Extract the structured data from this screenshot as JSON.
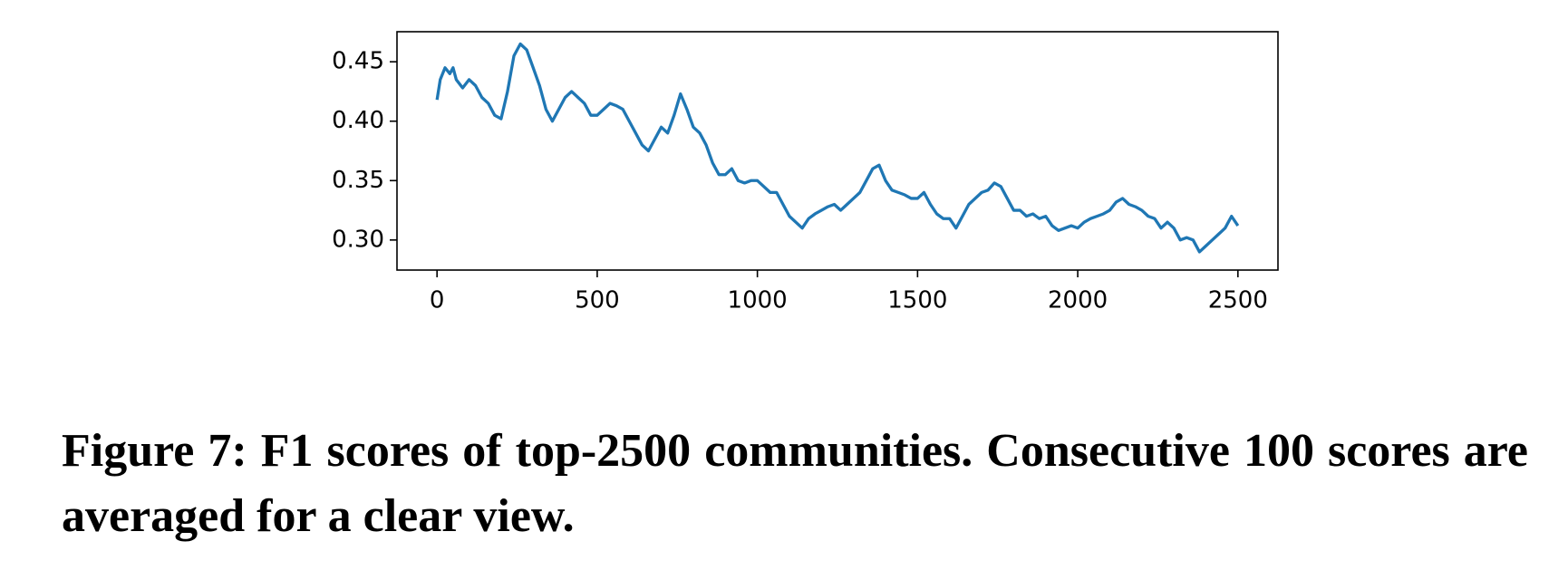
{
  "chart_data": {
    "type": "line",
    "caption": "Figure 7: F1 scores of top-2500 communities. Consecutive 100 scores are averaged for a clear view.",
    "x": [
      0,
      10,
      25,
      40,
      50,
      60,
      80,
      100,
      120,
      140,
      160,
      180,
      200,
      220,
      240,
      260,
      280,
      300,
      320,
      340,
      360,
      380,
      400,
      420,
      440,
      460,
      480,
      500,
      520,
      540,
      560,
      580,
      600,
      620,
      640,
      660,
      680,
      700,
      720,
      740,
      760,
      780,
      800,
      820,
      840,
      860,
      880,
      900,
      920,
      940,
      960,
      980,
      1000,
      1020,
      1040,
      1060,
      1080,
      1100,
      1120,
      1140,
      1160,
      1180,
      1200,
      1220,
      1240,
      1260,
      1280,
      1300,
      1320,
      1340,
      1360,
      1380,
      1400,
      1420,
      1440,
      1460,
      1480,
      1500,
      1520,
      1540,
      1560,
      1580,
      1600,
      1620,
      1640,
      1660,
      1680,
      1700,
      1720,
      1740,
      1760,
      1780,
      1800,
      1820,
      1840,
      1860,
      1880,
      1900,
      1920,
      1940,
      1960,
      1980,
      2000,
      2020,
      2040,
      2060,
      2080,
      2100,
      2120,
      2140,
      2160,
      2180,
      2200,
      2220,
      2240,
      2260,
      2280,
      2300,
      2320,
      2340,
      2360,
      2380,
      2400,
      2420,
      2440,
      2460,
      2480,
      2500
    ],
    "series": [
      {
        "color": "#1f77b4",
        "values": [
          0.418,
          0.435,
          0.445,
          0.44,
          0.445,
          0.435,
          0.428,
          0.435,
          0.43,
          0.42,
          0.415,
          0.405,
          0.402,
          0.425,
          0.455,
          0.465,
          0.46,
          0.445,
          0.43,
          0.41,
          0.4,
          0.41,
          0.42,
          0.425,
          0.42,
          0.415,
          0.405,
          0.405,
          0.41,
          0.415,
          0.413,
          0.41,
          0.4,
          0.39,
          0.38,
          0.375,
          0.385,
          0.395,
          0.39,
          0.405,
          0.423,
          0.41,
          0.395,
          0.39,
          0.38,
          0.365,
          0.355,
          0.355,
          0.36,
          0.35,
          0.348,
          0.35,
          0.35,
          0.345,
          0.34,
          0.34,
          0.33,
          0.32,
          0.315,
          0.31,
          0.318,
          0.322,
          0.325,
          0.328,
          0.33,
          0.325,
          0.33,
          0.335,
          0.34,
          0.35,
          0.36,
          0.363,
          0.35,
          0.342,
          0.34,
          0.338,
          0.335,
          0.335,
          0.34,
          0.33,
          0.322,
          0.318,
          0.318,
          0.31,
          0.32,
          0.33,
          0.335,
          0.34,
          0.342,
          0.348,
          0.345,
          0.335,
          0.325,
          0.325,
          0.32,
          0.322,
          0.318,
          0.32,
          0.312,
          0.308,
          0.31,
          0.312,
          0.31,
          0.315,
          0.318,
          0.32,
          0.322,
          0.325,
          0.332,
          0.335,
          0.33,
          0.328,
          0.325,
          0.32,
          0.318,
          0.31,
          0.315,
          0.31,
          0.3,
          0.302,
          0.3,
          0.29,
          0.295,
          0.3,
          0.305,
          0.31,
          0.32,
          0.312
        ]
      }
    ],
    "xlim": [
      -125,
      2625
    ],
    "ylim": [
      0.2747,
      0.4753
    ],
    "xticks": [
      0,
      500,
      1000,
      1500,
      2000,
      2500
    ],
    "yticks": [
      {
        "value": 0.3,
        "label": "0.30"
      },
      0.35,
      {
        "value": 0.4,
        "label": "0.40"
      },
      0.45
    ]
  }
}
